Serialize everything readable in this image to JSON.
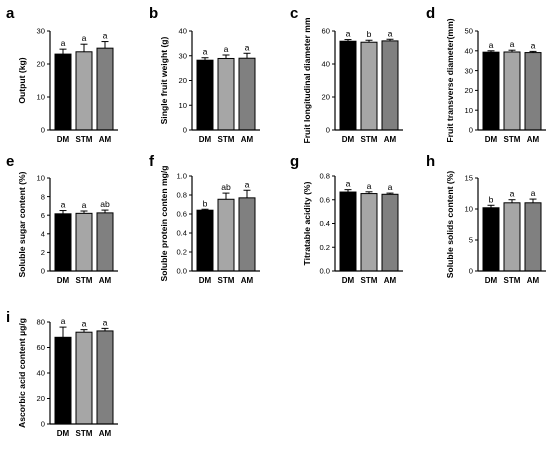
{
  "chart_data": [
    {
      "letter": "a",
      "type": "bar",
      "categories": [
        "DM",
        "STM",
        "AM"
      ],
      "values": [
        23,
        23.7,
        24.8
      ],
      "errors": [
        1.5,
        2.3,
        2.0
      ],
      "significance": [
        "a",
        "a",
        "a"
      ],
      "ylabel": "Output (kg)",
      "ylim": [
        0,
        30
      ],
      "yticks": [
        0,
        10,
        20,
        30
      ]
    },
    {
      "letter": "b",
      "type": "bar",
      "categories": [
        "DM",
        "STM",
        "AM"
      ],
      "values": [
        28.2,
        28.9,
        29.0
      ],
      "errors": [
        1.0,
        1.4,
        2.0
      ],
      "significance": [
        "a",
        "a",
        "a"
      ],
      "ylabel": "Single fruit weight (g)",
      "ylim": [
        0,
        40
      ],
      "yticks": [
        0,
        10,
        20,
        30,
        40
      ]
    },
    {
      "letter": "c",
      "type": "bar",
      "categories": [
        "DM",
        "STM",
        "AM"
      ],
      "values": [
        53.8,
        53.2,
        54.0
      ],
      "errors": [
        1.0,
        1.2,
        1.0
      ],
      "significance": [
        "a",
        "b",
        "a"
      ],
      "ylabel": "Fruit longitudinal diameter  mm",
      "ylim": [
        0,
        60
      ],
      "yticks": [
        0,
        20,
        40,
        60
      ]
    },
    {
      "letter": "d",
      "type": "bar",
      "categories": [
        "DM",
        "STM",
        "AM"
      ],
      "values": [
        39.3,
        39.4,
        39.1
      ],
      "errors": [
        0.7,
        0.9,
        0.6
      ],
      "significance": [
        "a",
        "a",
        "a"
      ],
      "ylabel": "Fruit transverse diameter(mm)",
      "ylim": [
        0,
        50
      ],
      "yticks": [
        0,
        10,
        20,
        30,
        40,
        50
      ]
    },
    {
      "letter": "e",
      "type": "bar",
      "categories": [
        "DM",
        "STM",
        "AM"
      ],
      "values": [
        6.15,
        6.2,
        6.25
      ],
      "errors": [
        0.35,
        0.25,
        0.3
      ],
      "significance": [
        "a",
        "a",
        "ab"
      ],
      "ylabel": "Soluble sugar content (%)",
      "ylim": [
        0,
        10
      ],
      "yticks": [
        0,
        2,
        4,
        6,
        8,
        10
      ]
    },
    {
      "letter": "f",
      "type": "bar",
      "categories": [
        "DM",
        "STM",
        "AM"
      ],
      "values": [
        0.64,
        0.755,
        0.77
      ],
      "errors": [
        0.01,
        0.065,
        0.08
      ],
      "significance": [
        "b",
        "ab",
        "a"
      ],
      "ylabel": "Soluble protein conten  mg/g",
      "ylim": [
        0,
        1.0
      ],
      "yticks": [
        0.0,
        0.2,
        0.4,
        0.6,
        0.8,
        1.0
      ]
    },
    {
      "letter": "g",
      "type": "bar",
      "categories": [
        "DM",
        "STM",
        "AM"
      ],
      "values": [
        0.665,
        0.652,
        0.646
      ],
      "errors": [
        0.02,
        0.015,
        0.01
      ],
      "significance": [
        "a",
        "a",
        "a"
      ],
      "ylabel": "Titratable acidity (%)",
      "ylim": [
        0,
        0.8
      ],
      "yticks": [
        0.0,
        0.2,
        0.4,
        0.6,
        0.8
      ]
    },
    {
      "letter": "h",
      "type": "bar",
      "categories": [
        "DM",
        "STM",
        "AM"
      ],
      "values": [
        10.2,
        11.0,
        11.0
      ],
      "errors": [
        0.4,
        0.5,
        0.6
      ],
      "significance": [
        "b",
        "a",
        "a"
      ],
      "ylabel": "Soluble solids content (%)",
      "ylim": [
        0,
        15
      ],
      "yticks": [
        0,
        5,
        10,
        15
      ]
    },
    {
      "letter": "i",
      "type": "bar",
      "categories": [
        "DM",
        "STM",
        "AM"
      ],
      "values": [
        68,
        72,
        73
      ],
      "errors": [
        8,
        2,
        2
      ],
      "significance": [
        "a",
        "a",
        "a"
      ],
      "ylabel": "Ascorbic acid content  µg/g",
      "ylim": [
        0,
        80
      ],
      "yticks": [
        0,
        20,
        40,
        60,
        80
      ]
    }
  ],
  "colors": {
    "DM": "#000000",
    "STM": "#a6a6a6",
    "AM": "#808080"
  }
}
